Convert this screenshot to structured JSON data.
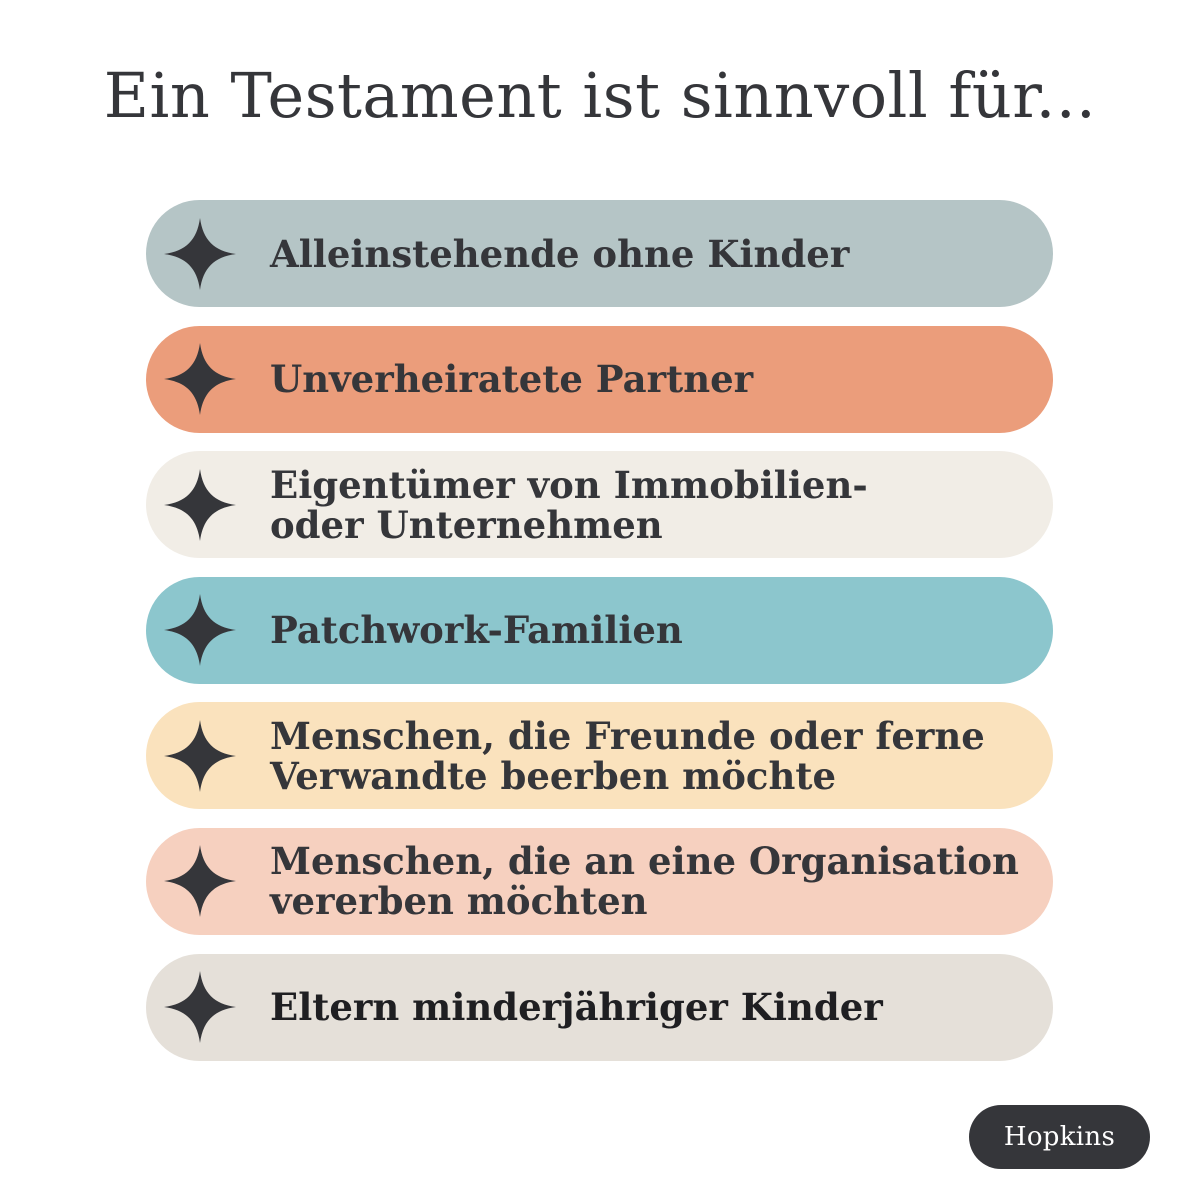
{
  "title": "Ein Testament ist sinnvoll für...",
  "items": [
    {
      "label": "Alleinstehende ohne Kinder",
      "color": "#b5c5c6"
    },
    {
      "label": "Unverheiratete Partner",
      "color": "#eb9d7b"
    },
    {
      "label": "Eigentümer von Immobilien-\noder Unternehmen",
      "color": "#f1ede6"
    },
    {
      "label": "Patchwork-Familien",
      "color": "#8cc6cd"
    },
    {
      "label": "Menschen, die Freunde oder ferne\nVerwandte beerben möchte",
      "color": "#fae2bd"
    },
    {
      "label": "Menschen, die an eine Organisation\nvererben möchten",
      "color": "#f6d0bf"
    },
    {
      "label": "Eltern minderjähriger Kinder",
      "color": "#e5e0d9"
    }
  ],
  "icon": "four-point-star-icon",
  "star_color": "#35363a",
  "brand": {
    "name": "Hopkins",
    "background": "#35363a"
  }
}
